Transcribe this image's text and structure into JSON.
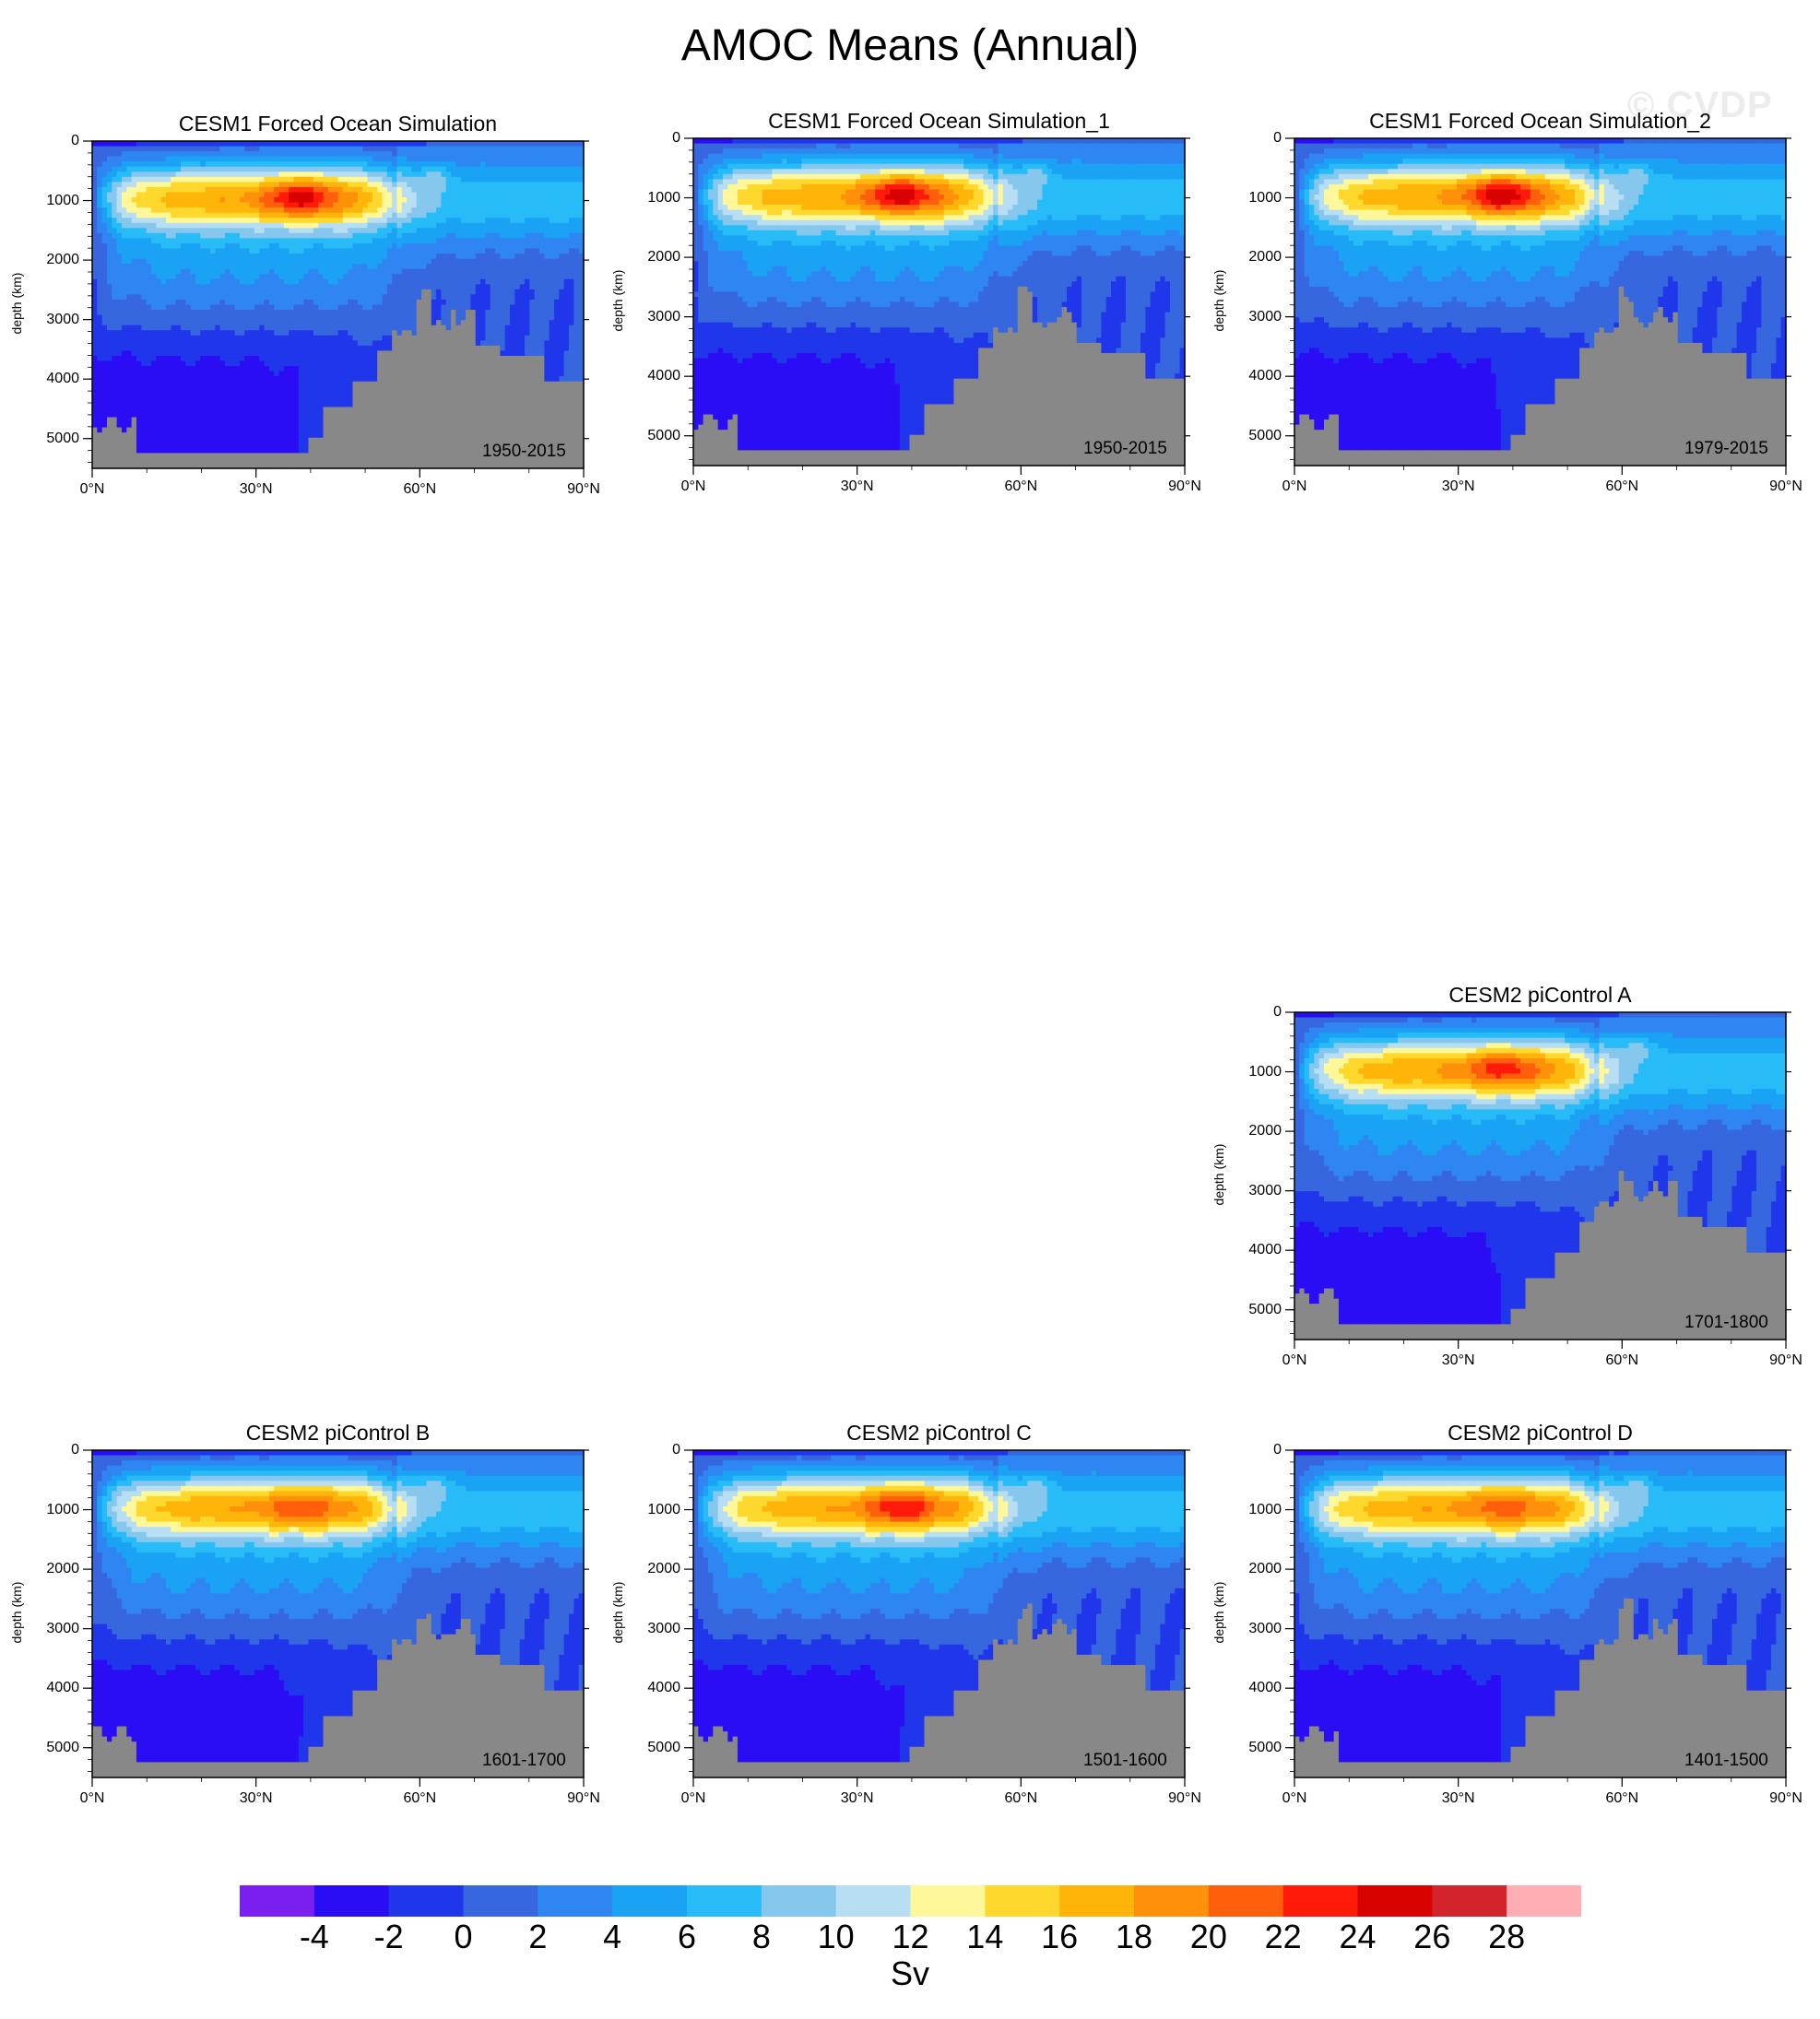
{
  "title": "AMOC Means (Annual)",
  "watermark": "© CVDP",
  "units_label": "Sv",
  "panels": [
    {
      "title": "CESM1 Forced Ocean Simulation",
      "period": "1950-2015",
      "ylabel": "depth (km)",
      "core_max": 26,
      "variant": 0
    },
    {
      "title": "CESM1 Forced Ocean Simulation_1",
      "period": "1950-2015",
      "ylabel": "depth (km)",
      "core_max": 26,
      "variant": 1
    },
    {
      "title": "CESM1 Forced Ocean Simulation_2",
      "period": "1979-2015",
      "ylabel": "depth (km)",
      "core_max": 26,
      "variant": 2
    },
    {
      "title": "CESM2 piControl A",
      "period": "1701-1800",
      "ylabel": "depth (km)",
      "core_max": 24,
      "variant": 3
    },
    {
      "title": "CESM2 piControl B",
      "period": "1601-1700",
      "ylabel": "depth (km)",
      "core_max": 22,
      "variant": 4
    },
    {
      "title": "CESM2 piControl C",
      "period": "1501-1600",
      "ylabel": "depth (km)",
      "core_max": 24,
      "variant": 5
    },
    {
      "title": "CESM2 piControl D",
      "period": "1401-1500",
      "ylabel": "depth (km)",
      "core_max": 22,
      "variant": 6
    }
  ],
  "chart_data": {
    "type": "heatmap",
    "x_ticks": [
      "0°N",
      "30°N",
      "60°N",
      "90°N"
    ],
    "x_range": [
      0,
      90
    ],
    "y_ticks": [
      "0",
      "1000",
      "2000",
      "3000",
      "4000",
      "5000"
    ],
    "y_range": [
      0,
      5500
    ],
    "colorbar": {
      "labels": [
        "-4",
        "-2",
        "0",
        "2",
        "4",
        "6",
        "8",
        "10",
        "12",
        "14",
        "16",
        "18",
        "20",
        "22",
        "24",
        "26",
        "28"
      ],
      "levels": [
        -4,
        -2,
        0,
        2,
        4,
        6,
        8,
        10,
        12,
        14,
        16,
        18,
        20,
        22,
        24,
        26,
        28
      ],
      "colors": [
        "#7b1ff0",
        "#2a0cf5",
        "#2036ea",
        "#3767de",
        "#2f86f2",
        "#1aa3f5",
        "#27bcf7",
        "#86c7ee",
        "#b7def2",
        "#fff89a",
        "#ffd82e",
        "#ffb40a",
        "#ff900a",
        "#ff5e0a",
        "#ff1a0a",
        "#d90000",
        "#d3242e",
        "#ffaeb3"
      ]
    },
    "land_color": "#888888"
  }
}
